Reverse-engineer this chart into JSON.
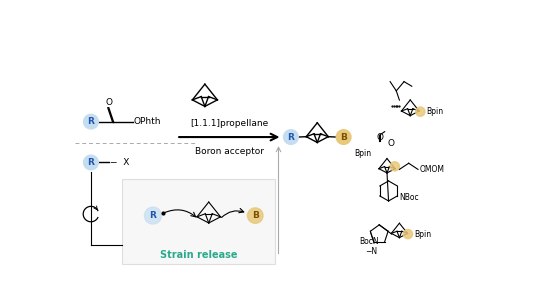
{
  "bg_color": "#ffffff",
  "light_blue": "#c5ddf0",
  "light_orange": "#e8c87a",
  "teal_text": "#2aaa8a",
  "box_border": "#cccccc",
  "dashed_color": "#aaaaaa",
  "text_labels": {
    "propellane": "[1.1.1]propellane",
    "boron": "Boron acceptor",
    "strain": "Strain release",
    "OPhth": "OPhth",
    "Bpin": "Bpin",
    "OMOM": "OMOM",
    "NBoc": "NBoc",
    "BocN": "BocN"
  },
  "figsize": [
    5.54,
    3.08
  ],
  "dpi": 100
}
